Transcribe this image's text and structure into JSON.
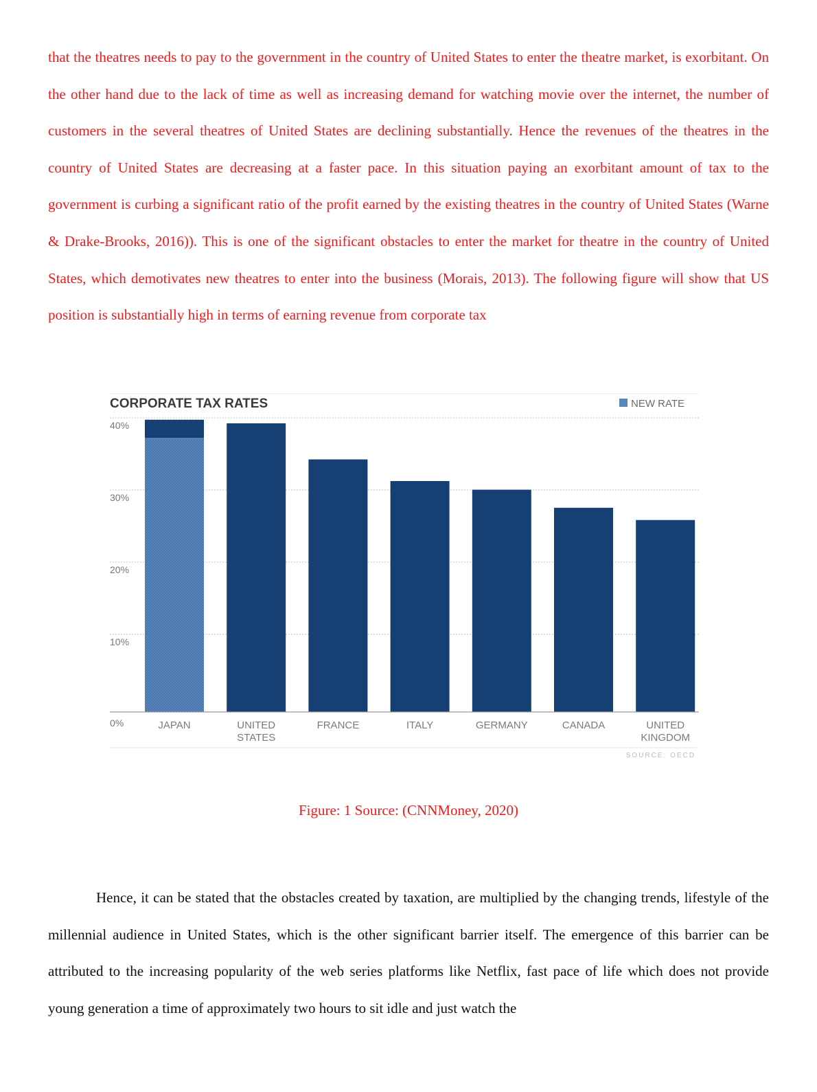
{
  "document": {
    "paragraph1": "that the theatres needs to pay to the government in the country of United States to enter the theatre market, is exorbitant. On the other hand due to the lack of time as well as increasing demand for watching movie over the internet, the number of customers in the several theatres of United States are declining substantially. Hence the revenues of the theatres in the country of United States are decreasing at a faster pace. In this situation paying an exorbitant amount of tax to the government is curbing a significant ratio of the profit earned by the existing theatres in the country of United States (Warne & Drake-Brooks, 2016)). This is one of the significant obstacles to enter the market for theatre in the country of United States, which demotivates new theatres to enter into the business (Morais, 2013). The following figure will show that US position is substantially high in terms of earning revenue from corporate tax",
    "caption": "Figure: 1 Source: (CNNMoney, 2020)",
    "paragraph2": "Hence, it can be stated that the obstacles created by taxation, are multiplied by the changing trends, lifestyle of the millennial audience in United States, which is the other significant barrier itself. The emergence of this barrier can be attributed to the increasing popularity of the web series platforms like Netflix, fast pace of life which does not provide young generation a time of approximately two hours to sit idle and just watch the"
  },
  "colors": {
    "body_text_red": "#ee1c1c",
    "body_text_black": "#111111",
    "bar": "#163f73",
    "new_rate": "#5a86bd"
  },
  "chart_data": {
    "type": "bar",
    "title": "CORPORATE TAX RATES",
    "legend": "NEW RATE",
    "legend_position": "top-right",
    "source": "SOURCE: OECD",
    "categories": [
      [
        "JAPAN"
      ],
      [
        "UNITED",
        "STATES"
      ],
      [
        "FRANCE"
      ],
      [
        "ITALY"
      ],
      [
        "GERMANY"
      ],
      [
        "CANADA"
      ],
      [
        "UNITED",
        "KINGDOM"
      ]
    ],
    "values": [
      40.5,
      40,
      35,
      32,
      30.8,
      28.3,
      26.6
    ],
    "new_rate_values": [
      38,
      null,
      null,
      null,
      null,
      null,
      null
    ],
    "yticks": [
      "0%",
      "10%",
      "20%",
      "30%",
      "40%"
    ],
    "ylim": [
      0,
      40
    ],
    "grid": true
  }
}
